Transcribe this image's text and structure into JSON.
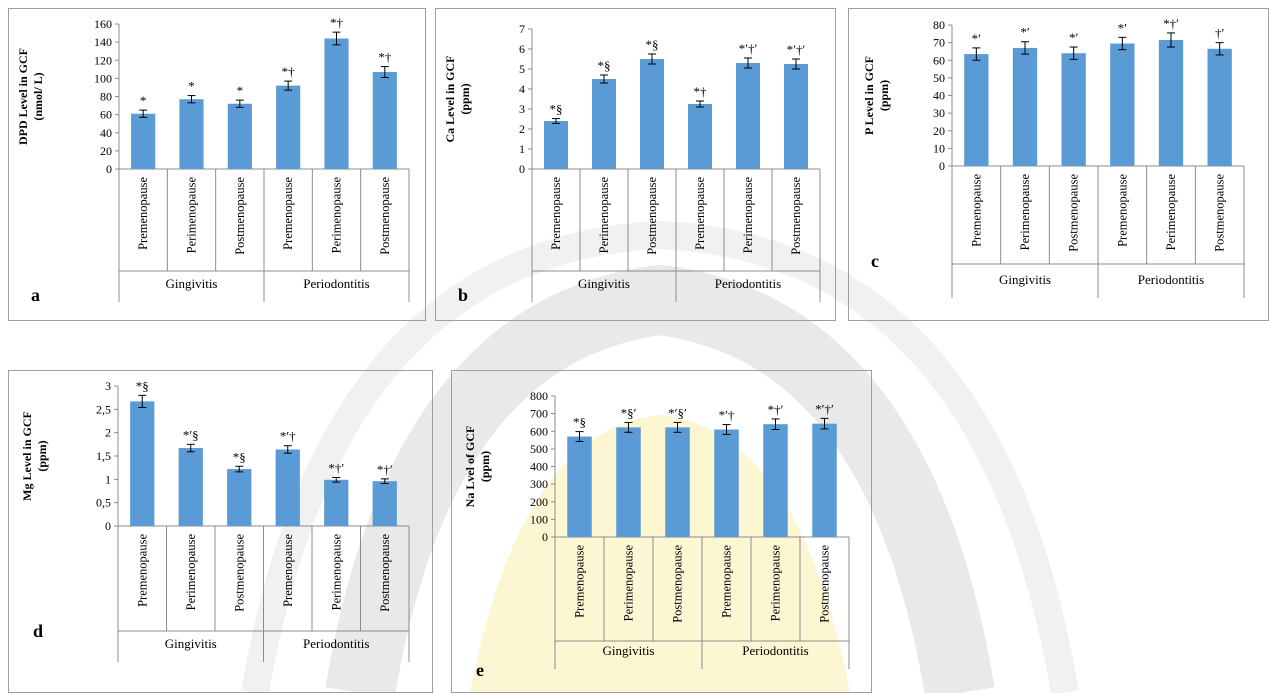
{
  "chart_data": [
    {
      "type": "bar",
      "panel_label": "a",
      "ylabel": [
        "DPD Level in GCF",
        "(nmol/ L)"
      ],
      "ylim": [
        0,
        160
      ],
      "yticks": [
        0,
        20,
        40,
        60,
        80,
        100,
        120,
        140,
        160
      ],
      "categories": [
        "Premenopause",
        "Perimenopause",
        "Postmenopause",
        "Premenopause",
        "Perimenopause",
        "Postmenopause"
      ],
      "groups": [
        {
          "label": "Gingivitis",
          "span": [
            0,
            2
          ]
        },
        {
          "label": "Periodontitis",
          "span": [
            3,
            5
          ]
        }
      ],
      "values": [
        61,
        77,
        72,
        92,
        144,
        107
      ],
      "errors": [
        4,
        4,
        4,
        5,
        7,
        6
      ],
      "annotations": [
        "*",
        "*",
        "*",
        "*†",
        "*†",
        "*†"
      ],
      "color": "#5b9bd5"
    },
    {
      "type": "bar",
      "panel_label": "b",
      "ylabel": [
        "Ca Level in GCF",
        "(ppm)"
      ],
      "ylim": [
        0,
        7
      ],
      "yticks": [
        0,
        1,
        2,
        3,
        4,
        5,
        6,
        7
      ],
      "categories": [
        "Premenopause",
        "Perimenopause",
        "Postmenopause",
        "Premenopause",
        "Perimenopause",
        "Postmenopause"
      ],
      "groups": [
        {
          "label": "Gingivitis",
          "span": [
            0,
            2
          ]
        },
        {
          "label": "Periodontitis",
          "span": [
            3,
            5
          ]
        }
      ],
      "values": [
        2.4,
        4.5,
        5.5,
        3.25,
        5.3,
        5.25
      ],
      "errors": [
        0.12,
        0.2,
        0.25,
        0.15,
        0.25,
        0.25
      ],
      "annotations": [
        "*§",
        "*§",
        "*§",
        "*†",
        "*′†′",
        "*′†′"
      ],
      "color": "#5b9bd5"
    },
    {
      "type": "bar",
      "panel_label": "c",
      "ylabel": [
        "P Level in GCF",
        "(ppm)"
      ],
      "ylim": [
        0,
        80
      ],
      "yticks": [
        0,
        10,
        20,
        30,
        40,
        50,
        60,
        70,
        80
      ],
      "categories": [
        "Premenopause",
        "Perimenopause",
        "Postmenopause",
        "Premenopause",
        "Perimenopause",
        "Postmenopause"
      ],
      "groups": [
        {
          "label": "Gingivitis",
          "span": [
            0,
            2
          ]
        },
        {
          "label": "Periodontitis",
          "span": [
            3,
            5
          ]
        }
      ],
      "values": [
        63.5,
        67,
        64,
        69.5,
        71.5,
        66.5
      ],
      "errors": [
        3.5,
        3.5,
        3.5,
        3.5,
        4,
        3.5
      ],
      "annotations": [
        "*′",
        "*′",
        "*′",
        "*′",
        "*†′",
        "†′"
      ],
      "color": "#5b9bd5"
    },
    {
      "type": "bar",
      "panel_label": "d",
      "ylabel": [
        "Mg Level in GCF",
        "(ppm)"
      ],
      "ylim": [
        0,
        3
      ],
      "yticks": [
        "0",
        "0,5",
        "1",
        "1,5",
        "2",
        "2,5",
        "3"
      ],
      "categories": [
        "Premenopause",
        "Perimenopause",
        "Postmenopause",
        "Premenopause",
        "Perimenopause",
        "Postmenopause"
      ],
      "groups": [
        {
          "label": "Gingivitis",
          "span": [
            0,
            2
          ]
        },
        {
          "label": "Periodontitis",
          "span": [
            3,
            5
          ]
        }
      ],
      "values": [
        2.67,
        1.67,
        1.22,
        1.64,
        0.99,
        0.96
      ],
      "errors": [
        0.13,
        0.08,
        0.06,
        0.08,
        0.05,
        0.05
      ],
      "annotations": [
        "*§",
        "*′§",
        "*§",
        "*′†",
        "*†′",
        "*†′"
      ],
      "color": "#5b9bd5"
    },
    {
      "type": "bar",
      "panel_label": "e",
      "ylabel": [
        "Na Lvel of GCF",
        "(ppm)"
      ],
      "ylim": [
        0,
        800
      ],
      "yticks": [
        0,
        100,
        200,
        300,
        400,
        500,
        600,
        700,
        800
      ],
      "categories": [
        "Premenopause",
        "Perimenopause",
        "Postmenopause",
        "Premenopause",
        "Perimenopause",
        "Postmenopause"
      ],
      "groups": [
        {
          "label": "Gingivitis",
          "span": [
            0,
            2
          ]
        },
        {
          "label": "Periodontitis",
          "span": [
            3,
            5
          ]
        }
      ],
      "values": [
        570,
        622,
        622,
        610,
        640,
        643
      ],
      "errors": [
        28,
        28,
        28,
        28,
        30,
        30
      ],
      "annotations": [
        "*§",
        "*§′",
        "*′§′",
        "*′†",
        "*†′",
        "*′†′"
      ],
      "color": "#5b9bd5"
    }
  ]
}
